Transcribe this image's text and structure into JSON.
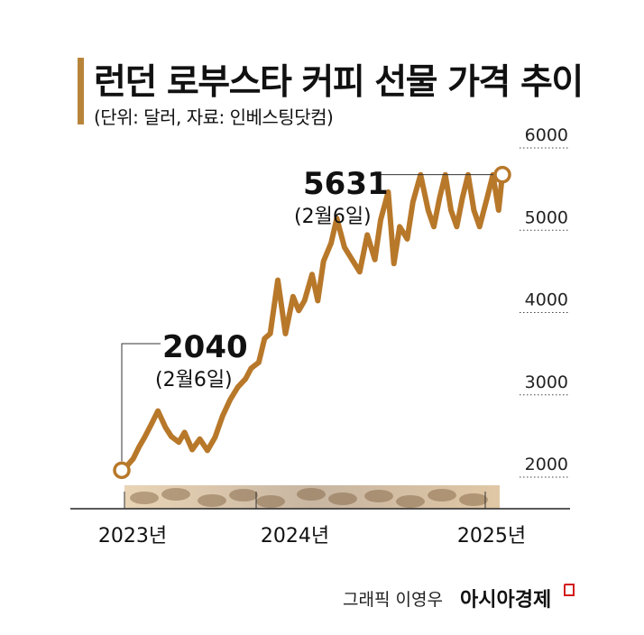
{
  "header": {
    "title": "런던 로부스타 커피 선물 가격 추이",
    "subtitle": "(단위: 달러, 자료: 인베스팅닷컴)"
  },
  "footer": {
    "credit": "그래픽 이영우",
    "brand": "아시아경제"
  },
  "chart_data": {
    "type": "line",
    "title": "런던 로부스타 커피 선물 가격 추이",
    "subtitle": "(단위: 달러, 자료: 인베스팅닷컴)",
    "ylim": [
      1600,
      6000
    ],
    "y_ticks": [
      "2000",
      "3000",
      "4000",
      "5000",
      "6000"
    ],
    "x_ticks": [
      "2023년",
      "2024년",
      "2025년"
    ],
    "grid": "dotted horizontal",
    "line_color": "#b8782a",
    "series": [
      {
        "x": [
          2023.1,
          2023.13,
          2023.16,
          2023.19,
          2023.22,
          2023.26,
          2023.29,
          2023.33,
          2023.36,
          2023.4,
          2023.43,
          2023.47,
          2023.51,
          2023.55,
          2023.59,
          2023.63,
          2023.67,
          2023.71,
          2023.75,
          2023.78,
          2023.82,
          2023.85,
          2023.88,
          2023.92,
          2023.96,
          2024.0,
          2024.03,
          2024.06,
          2024.1,
          2024.13,
          2024.16,
          2024.2,
          2024.23,
          2024.27,
          2024.31,
          2024.35,
          2024.39,
          2024.43,
          2024.46,
          2024.5,
          2024.53,
          2024.56,
          2024.6,
          2024.63,
          2024.67,
          2024.71,
          2024.74,
          2024.77,
          2024.8,
          2024.83,
          2024.86,
          2024.89,
          2024.92,
          2024.95,
          2024.98,
          2025.02,
          2025.05,
          2025.08,
          2025.1
        ],
        "values": [
          2040,
          2100,
          2180,
          2320,
          2440,
          2620,
          2760,
          2560,
          2450,
          2380,
          2500,
          2290,
          2420,
          2280,
          2440,
          2700,
          2900,
          3050,
          3150,
          3280,
          3350,
          3640,
          3700,
          4350,
          3700,
          4150,
          3980,
          4100,
          4420,
          4100,
          4580,
          4800,
          5100,
          4750,
          4600,
          4450,
          4900,
          4600,
          5080,
          5420,
          4550,
          5000,
          4850,
          5300,
          5631,
          5200,
          5000,
          5350,
          5631,
          5200,
          5000,
          5350,
          5631,
          5200,
          5000,
          5350,
          5631,
          5200,
          5631
        ]
      }
    ],
    "annotations": [
      {
        "value": "2040",
        "date": "(2월6일)"
      },
      {
        "value": "5631",
        "date": "(2월6일)"
      }
    ]
  }
}
